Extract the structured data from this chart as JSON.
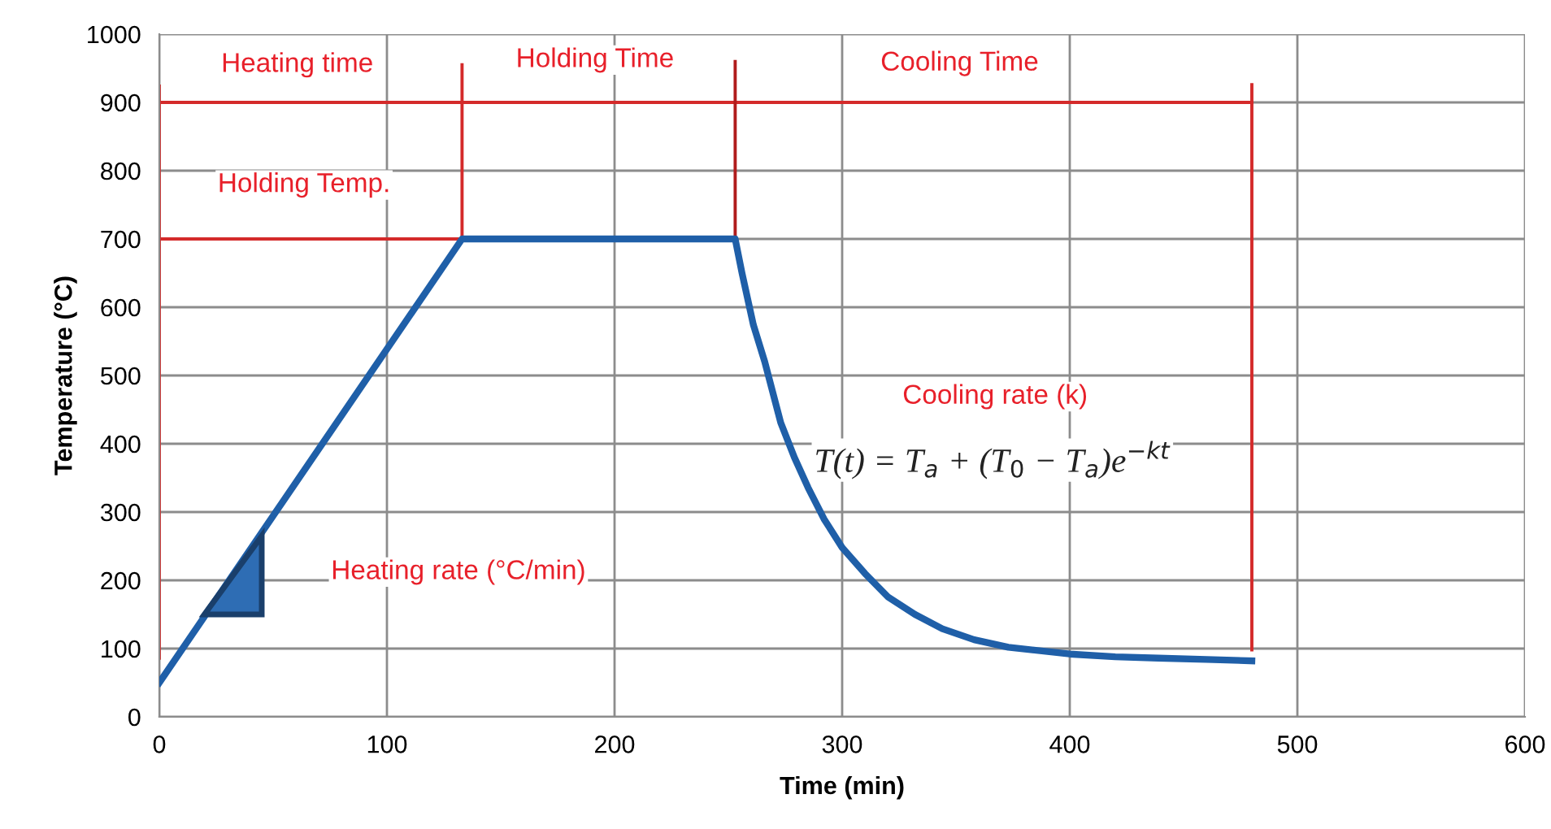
{
  "chart_data": {
    "type": "line",
    "xlabel": "Time (min)",
    "ylabel": "Temperature (°C)",
    "xlim": [
      0,
      600
    ],
    "xticks": [
      0,
      100,
      200,
      300,
      400,
      500,
      600
    ],
    "ylim": [
      0,
      1000
    ],
    "yticks": [
      0,
      100,
      200,
      300,
      400,
      500,
      600,
      700,
      800,
      900,
      1000
    ],
    "grid": true,
    "marker": "none",
    "line_style": "solid",
    "series": [
      {
        "color": "#1f5fa8",
        "x": [
          0,
          133,
          253,
          256,
          261,
          266,
          273,
          279,
          285,
          292,
          300,
          310,
          320,
          332,
          344,
          358,
          373,
          400,
          420,
          439,
          460,
          480
        ],
        "values": [
          50,
          700,
          700,
          650,
          574,
          520,
          431,
          380,
          336,
          290,
          248,
          210,
          176,
          150,
          129,
          113,
          102,
          92,
          88,
          86,
          84,
          82
        ]
      },
      {
        "color": "#d42a2a",
        "x": [
          0,
          480
        ],
        "values": [
          900,
          900
        ]
      },
      {
        "color": "#d42a2a",
        "x": [
          0,
          133
        ],
        "values": [
          700,
          700
        ]
      },
      {
        "color": "#d42a2a",
        "x": [
          0,
          0
        ],
        "values": [
          86,
          924
        ]
      },
      {
        "color": "#d42a2a",
        "x": [
          133,
          133
        ],
        "values": [
          700,
          955
        ]
      },
      {
        "color": "#b01c1c",
        "x": [
          253,
          253
        ],
        "values": [
          700,
          960
        ]
      },
      {
        "color": "#d42a2a",
        "x": [
          480,
          480
        ],
        "values": [
          98,
          926
        ]
      }
    ],
    "annotations": [
      "Heating time",
      "Holding Time",
      "Cooling Time",
      "Holding Temp.",
      "Heating rate (°C/min)",
      "Cooling rate (k)",
      "T(t) = T$_{a}$ + (T$_{0}$ − T$_{a}$)e$^{−kt}$"
    ]
  }
}
